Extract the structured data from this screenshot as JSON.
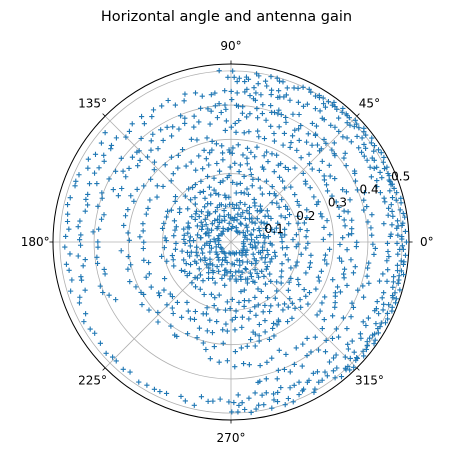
{
  "chart_data": {
    "type": "scatter",
    "projection": "polar",
    "title": "Horizontal angle and antenna gain",
    "theta_tick_labels": [
      "0°",
      "45°",
      "90°",
      "135°",
      "180°",
      "225°",
      "270°",
      "315°"
    ],
    "theta_ticks_deg": [
      0,
      45,
      90,
      135,
      180,
      225,
      270,
      315
    ],
    "r_ticks": [
      0.1,
      0.2,
      0.3,
      0.4,
      0.5
    ],
    "r_tick_labels": [
      "0.1",
      "0.2",
      "0.3",
      "0.4",
      "0.5"
    ],
    "rlim": [
      0,
      0.52
    ],
    "grid": true,
    "marker": "+",
    "series": [
      {
        "color": "#1f77b4",
        "rings": [
          {
            "r": 0.04,
            "theta_from": 0,
            "theta_to": 360,
            "n": 40,
            "jitter": 0.008
          },
          {
            "r": 0.06,
            "theta_from": 0,
            "theta_to": 360,
            "n": 44,
            "jitter": 0.01
          },
          {
            "r": 0.08,
            "theta_from": 0,
            "theta_to": 360,
            "n": 48,
            "jitter": 0.01
          },
          {
            "r": 0.1,
            "theta_from": 0,
            "theta_to": 360,
            "n": 52,
            "jitter": 0.01
          },
          {
            "r": 0.12,
            "theta_from": 0,
            "theta_to": 360,
            "n": 56,
            "jitter": 0.012
          },
          {
            "r": 0.14,
            "theta_from": -80,
            "theta_to": 240,
            "n": 56,
            "jitter": 0.012
          },
          {
            "r": 0.17,
            "theta_from": 0,
            "theta_to": 360,
            "n": 64,
            "jitter": 0.012
          },
          {
            "r": 0.2,
            "theta_from": -110,
            "theta_to": 200,
            "n": 62,
            "jitter": 0.012
          },
          {
            "r": 0.23,
            "theta_from": -150,
            "theta_to": 120,
            "n": 58,
            "jitter": 0.012
          },
          {
            "r": 0.26,
            "theta_from": 60,
            "theta_to": 330,
            "n": 58,
            "jitter": 0.012
          },
          {
            "r": 0.28,
            "theta_from": -80,
            "theta_to": 110,
            "n": 52,
            "jitter": 0.012
          },
          {
            "r": 0.31,
            "theta_from": 100,
            "theta_to": 300,
            "n": 48,
            "jitter": 0.014
          },
          {
            "r": 0.33,
            "theta_from": -40,
            "theta_to": 95,
            "n": 46,
            "jitter": 0.014
          },
          {
            "r": 0.36,
            "theta_from": -100,
            "theta_to": 160,
            "n": 70,
            "jitter": 0.014
          },
          {
            "r": 0.39,
            "theta_from": 40,
            "theta_to": 210,
            "n": 56,
            "jitter": 0.014
          },
          {
            "r": 0.41,
            "theta_from": -80,
            "theta_to": 100,
            "n": 70,
            "jitter": 0.014
          },
          {
            "r": 0.44,
            "theta_from": 70,
            "theta_to": 200,
            "n": 50,
            "jitter": 0.014
          },
          {
            "r": 0.46,
            "theta_from": -100,
            "theta_to": 90,
            "n": 90,
            "jitter": 0.014
          },
          {
            "r": 0.48,
            "theta_from": 140,
            "theta_to": 260,
            "n": 40,
            "jitter": 0.01
          },
          {
            "r": 0.49,
            "theta_from": -90,
            "theta_to": 95,
            "n": 110,
            "jitter": 0.012
          },
          {
            "r": 0.505,
            "theta_from": -50,
            "theta_to": 60,
            "n": 70,
            "jitter": 0.008
          }
        ]
      }
    ]
  }
}
